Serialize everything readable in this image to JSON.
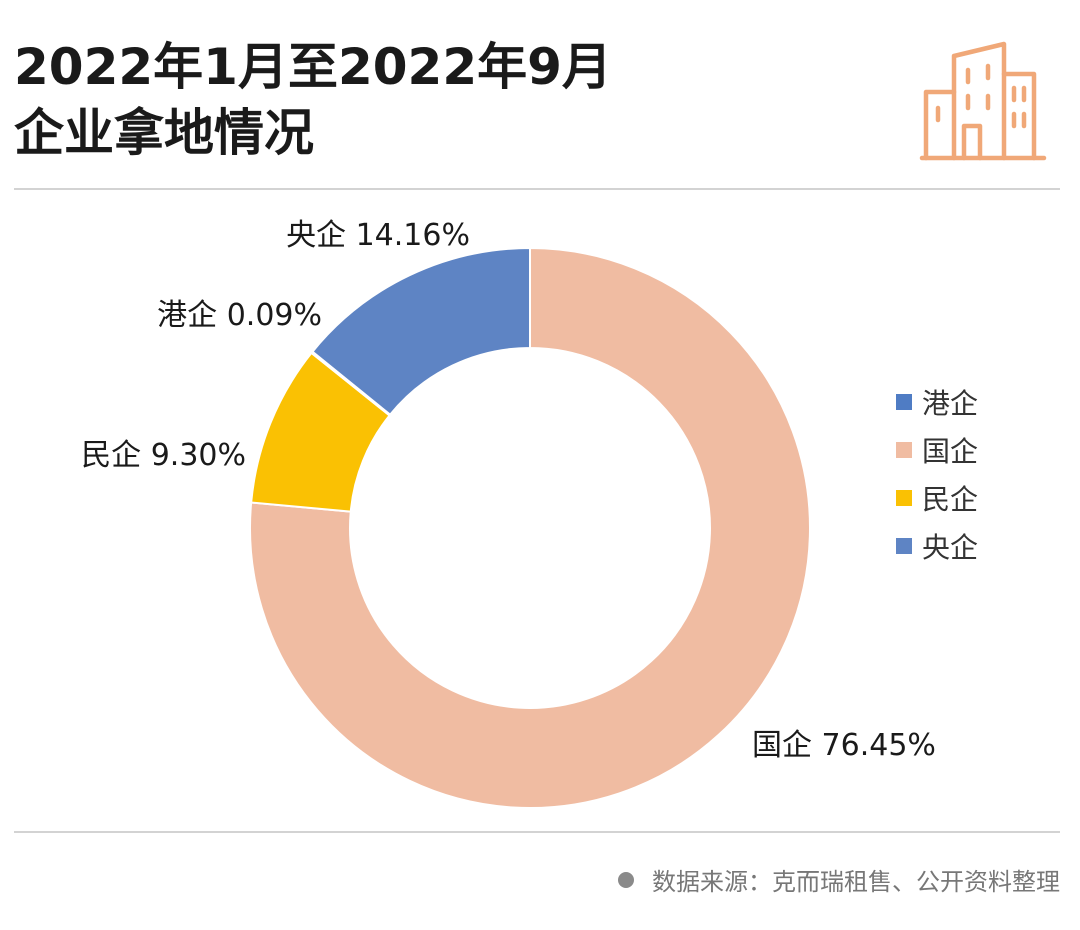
{
  "header": {
    "title_line1": "2022年1月至2022年9月",
    "title_line2": "企业拿地情况",
    "icon": "building-icon",
    "icon_color": "#f0a878"
  },
  "chart_data": {
    "type": "pie",
    "donut": true,
    "title": "2022年1月至2022年9月企业拿地情况",
    "slices": [
      {
        "name": "国企",
        "value": 76.45,
        "label": "国企 76.45%",
        "color": "#f0bca2"
      },
      {
        "name": "民企",
        "value": 9.3,
        "label": "民企 9.30%",
        "color": "#fac103"
      },
      {
        "name": "港企",
        "value": 0.09,
        "label": "港企 0.09%",
        "color": "#4f7cc4"
      },
      {
        "name": "央企",
        "value": 14.16,
        "label": "央企 14.16%",
        "color": "#5e84c4"
      }
    ],
    "legend": {
      "placement": "right",
      "entries": [
        {
          "name": "港企",
          "color": "#4f7cc4"
        },
        {
          "name": "国企",
          "color": "#f0bca2"
        },
        {
          "name": "民企",
          "color": "#fac103"
        },
        {
          "name": "央企",
          "color": "#5e84c4"
        }
      ]
    }
  },
  "footer": {
    "source_text": "数据来源：克而瑞租售、公开资料整理"
  }
}
